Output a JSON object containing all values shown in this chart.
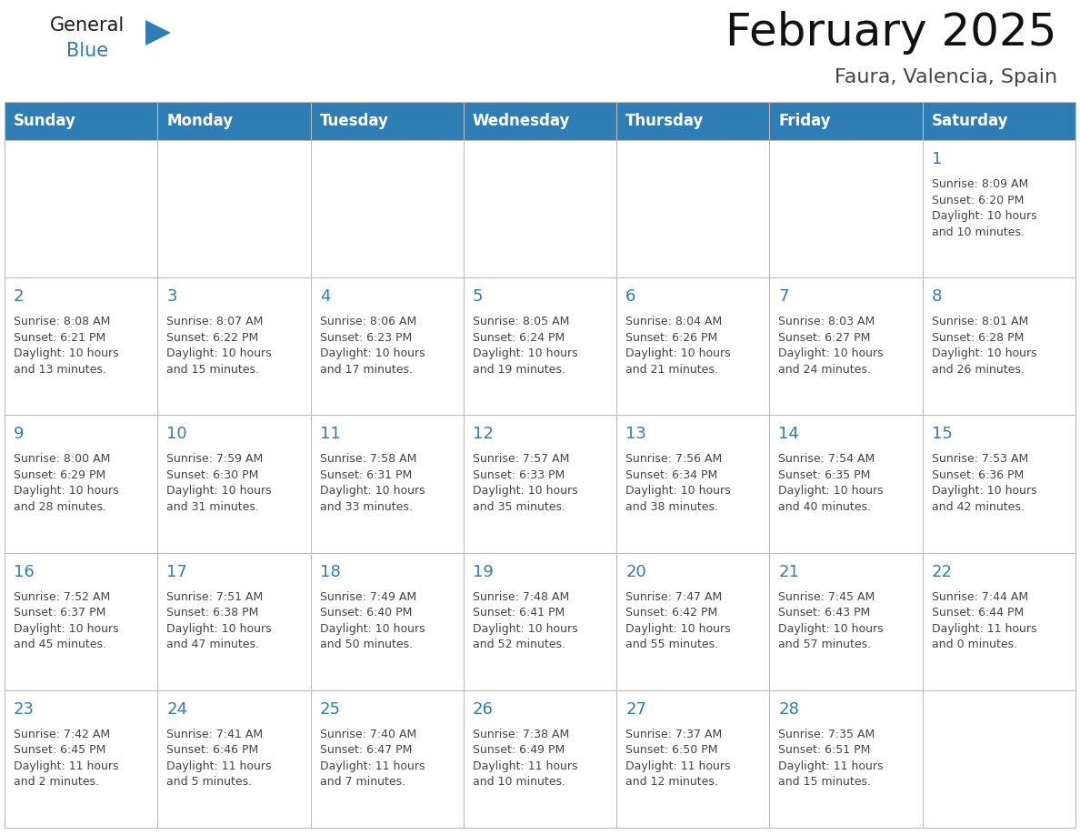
{
  "title": "February 2025",
  "subtitle": "Faura, Valencia, Spain",
  "header_bg": "#2E7DB5",
  "header_text_color": "#FFFFFF",
  "day_number_color": "#2E7DB5",
  "info_text_color": "#444444",
  "border_color": "#BBBBBB",
  "days_of_week": [
    "Sunday",
    "Monday",
    "Tuesday",
    "Wednesday",
    "Thursday",
    "Friday",
    "Saturday"
  ],
  "weeks": [
    [
      null,
      null,
      null,
      null,
      null,
      null,
      1
    ],
    [
      2,
      3,
      4,
      5,
      6,
      7,
      8
    ],
    [
      9,
      10,
      11,
      12,
      13,
      14,
      15
    ],
    [
      16,
      17,
      18,
      19,
      20,
      21,
      22
    ],
    [
      23,
      24,
      25,
      26,
      27,
      28,
      null
    ]
  ],
  "cell_data": {
    "1": {
      "sunrise": "8:09 AM",
      "sunset": "6:20 PM",
      "daylight_h": "10",
      "daylight_m": "10"
    },
    "2": {
      "sunrise": "8:08 AM",
      "sunset": "6:21 PM",
      "daylight_h": "10",
      "daylight_m": "13"
    },
    "3": {
      "sunrise": "8:07 AM",
      "sunset": "6:22 PM",
      "daylight_h": "10",
      "daylight_m": "15"
    },
    "4": {
      "sunrise": "8:06 AM",
      "sunset": "6:23 PM",
      "daylight_h": "10",
      "daylight_m": "17"
    },
    "5": {
      "sunrise": "8:05 AM",
      "sunset": "6:24 PM",
      "daylight_h": "10",
      "daylight_m": "19"
    },
    "6": {
      "sunrise": "8:04 AM",
      "sunset": "6:26 PM",
      "daylight_h": "10",
      "daylight_m": "21"
    },
    "7": {
      "sunrise": "8:03 AM",
      "sunset": "6:27 PM",
      "daylight_h": "10",
      "daylight_m": "24"
    },
    "8": {
      "sunrise": "8:01 AM",
      "sunset": "6:28 PM",
      "daylight_h": "10",
      "daylight_m": "26"
    },
    "9": {
      "sunrise": "8:00 AM",
      "sunset": "6:29 PM",
      "daylight_h": "10",
      "daylight_m": "28"
    },
    "10": {
      "sunrise": "7:59 AM",
      "sunset": "6:30 PM",
      "daylight_h": "10",
      "daylight_m": "31"
    },
    "11": {
      "sunrise": "7:58 AM",
      "sunset": "6:31 PM",
      "daylight_h": "10",
      "daylight_m": "33"
    },
    "12": {
      "sunrise": "7:57 AM",
      "sunset": "6:33 PM",
      "daylight_h": "10",
      "daylight_m": "35"
    },
    "13": {
      "sunrise": "7:56 AM",
      "sunset": "6:34 PM",
      "daylight_h": "10",
      "daylight_m": "38"
    },
    "14": {
      "sunrise": "7:54 AM",
      "sunset": "6:35 PM",
      "daylight_h": "10",
      "daylight_m": "40"
    },
    "15": {
      "sunrise": "7:53 AM",
      "sunset": "6:36 PM",
      "daylight_h": "10",
      "daylight_m": "42"
    },
    "16": {
      "sunrise": "7:52 AM",
      "sunset": "6:37 PM",
      "daylight_h": "10",
      "daylight_m": "45"
    },
    "17": {
      "sunrise": "7:51 AM",
      "sunset": "6:38 PM",
      "daylight_h": "10",
      "daylight_m": "47"
    },
    "18": {
      "sunrise": "7:49 AM",
      "sunset": "6:40 PM",
      "daylight_h": "10",
      "daylight_m": "50"
    },
    "19": {
      "sunrise": "7:48 AM",
      "sunset": "6:41 PM",
      "daylight_h": "10",
      "daylight_m": "52"
    },
    "20": {
      "sunrise": "7:47 AM",
      "sunset": "6:42 PM",
      "daylight_h": "10",
      "daylight_m": "55"
    },
    "21": {
      "sunrise": "7:45 AM",
      "sunset": "6:43 PM",
      "daylight_h": "10",
      "daylight_m": "57"
    },
    "22": {
      "sunrise": "7:44 AM",
      "sunset": "6:44 PM",
      "daylight_h": "11",
      "daylight_m": "0"
    },
    "23": {
      "sunrise": "7:42 AM",
      "sunset": "6:45 PM",
      "daylight_h": "11",
      "daylight_m": "2"
    },
    "24": {
      "sunrise": "7:41 AM",
      "sunset": "6:46 PM",
      "daylight_h": "11",
      "daylight_m": "5"
    },
    "25": {
      "sunrise": "7:40 AM",
      "sunset": "6:47 PM",
      "daylight_h": "11",
      "daylight_m": "7"
    },
    "26": {
      "sunrise": "7:38 AM",
      "sunset": "6:49 PM",
      "daylight_h": "11",
      "daylight_m": "10"
    },
    "27": {
      "sunrise": "7:37 AM",
      "sunset": "6:50 PM",
      "daylight_h": "11",
      "daylight_m": "12"
    },
    "28": {
      "sunrise": "7:35 AM",
      "sunset": "6:51 PM",
      "daylight_h": "11",
      "daylight_m": "15"
    }
  },
  "logo_general_color": "#1a1a1a",
  "logo_blue_color": "#2E7DB5",
  "logo_triangle_color": "#2E7DB5",
  "title_fontsize": 36,
  "subtitle_fontsize": 16,
  "header_fontsize": 12,
  "day_num_fontsize": 13,
  "cell_text_fontsize": 9
}
